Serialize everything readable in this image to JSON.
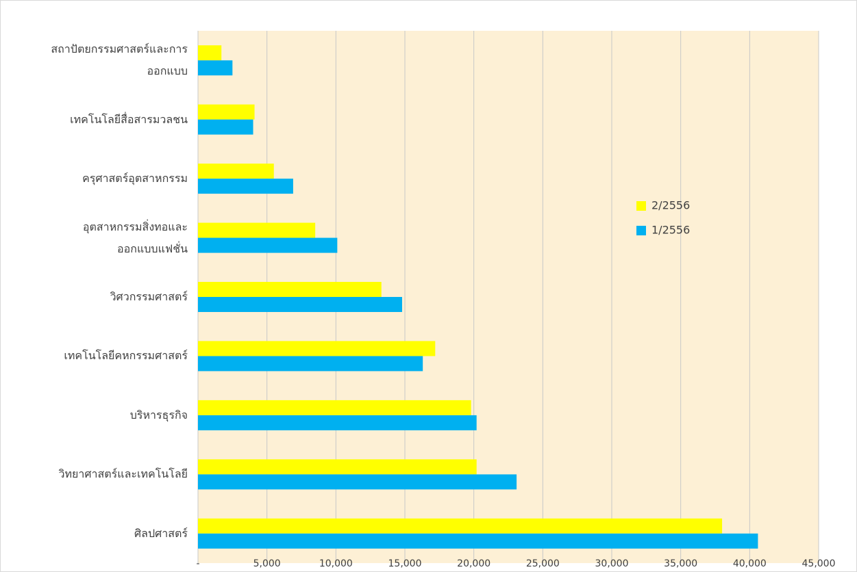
{
  "chart_data": {
    "type": "bar",
    "orientation": "horizontal",
    "categories": [
      "สถาปัตยกรรมศาสตร์และการ\nออกแบบ",
      "เทคโนโลยีสื่อสารมวลชน",
      "ครุศาสตร์อุตสาหกรรม",
      "อุตสาหกรรมสิ่งทอและ\nออกแบบแฟชั่น",
      "วิศวกรรมศาสตร์",
      "เทคโนโลยีคหกรรมศาสตร์",
      "บริหารธุรกิจ",
      "วิทยาศาสตร์และเทคโนโลยี",
      "ศิลปศาสตร์"
    ],
    "series": [
      {
        "name": "2/2556",
        "color": "#ffff00",
        "values": [
          1700,
          4100,
          5500,
          8500,
          13300,
          17200,
          19800,
          20200,
          38000
        ]
      },
      {
        "name": "1/2556",
        "color": "#00b0f0",
        "values": [
          2500,
          4000,
          6900,
          10100,
          14800,
          16300,
          20200,
          23100,
          40600
        ]
      }
    ],
    "xlim": [
      0,
      45000
    ],
    "xticks": [
      {
        "value": 0,
        "label": "-"
      },
      {
        "value": 5000,
        "label": "5,000"
      },
      {
        "value": 10000,
        "label": "10,000"
      },
      {
        "value": 15000,
        "label": "15,000"
      },
      {
        "value": 20000,
        "label": "20,000"
      },
      {
        "value": 25000,
        "label": "25,000"
      },
      {
        "value": 30000,
        "label": "30,000"
      },
      {
        "value": 35000,
        "label": "35,000"
      },
      {
        "value": 40000,
        "label": "40,000"
      },
      {
        "value": 45000,
        "label": "45,000"
      }
    ],
    "grid": true,
    "legend": "right"
  }
}
